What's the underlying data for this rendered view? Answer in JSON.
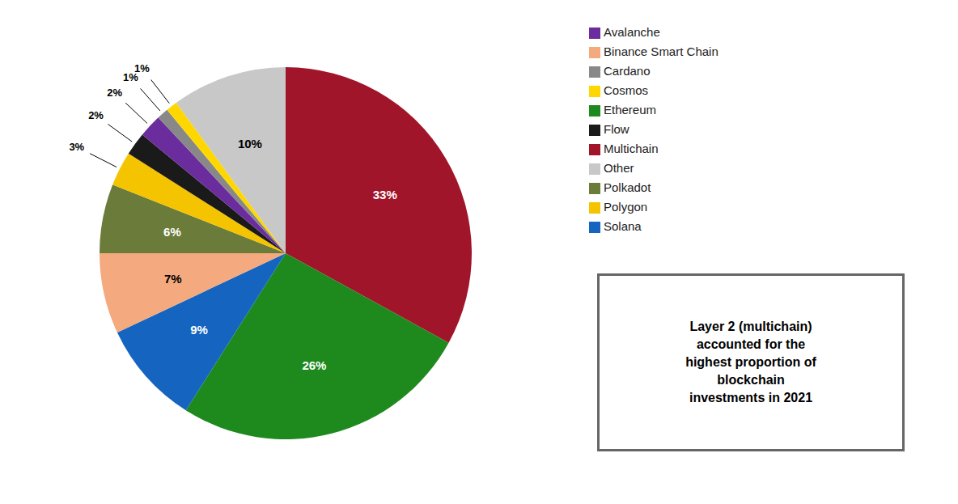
{
  "chart_data": {
    "type": "pie",
    "categories": [
      "Multichain",
      "Ethereum",
      "Solana",
      "Binance Smart Chain",
      "Polkadot",
      "Polygon",
      "Flow",
      "Avalanche",
      "Cardano",
      "Cosmos",
      "Other"
    ],
    "values": [
      33,
      26,
      9,
      7,
      6,
      3,
      2,
      2,
      1,
      1,
      10
    ],
    "value_labels": [
      "33%",
      "26%",
      "9%",
      "7%",
      "6%",
      "3%",
      "2%",
      "2%",
      "1%",
      "1%",
      "10%"
    ],
    "colors": [
      "#A0152A",
      "#1E8A1E",
      "#1565C0",
      "#F4A97F",
      "#6B7C3A",
      "#F5C400",
      "#1A1A1A",
      "#6B2D9E",
      "#888888",
      "#FFD700",
      "#C8C8C8"
    ],
    "data_labels": true,
    "legend": "right",
    "annotations": [
      "Layer 2 (multichain)\naccounted for the\nhighest proportion of\nblockchain\ninvestments in 2021"
    ]
  }
}
